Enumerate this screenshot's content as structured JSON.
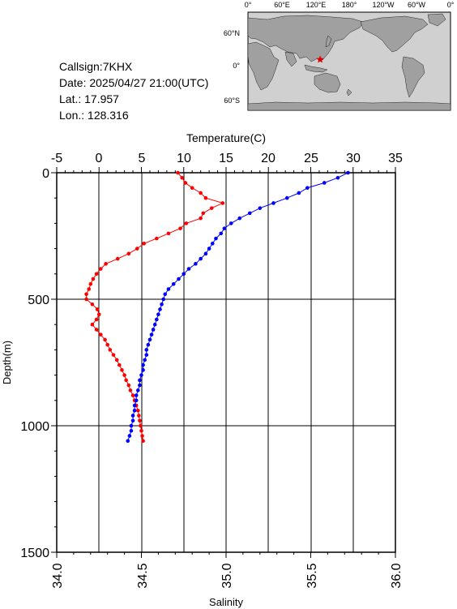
{
  "info": {
    "callsign": "Callsign:7KHX",
    "date": "Date:  2025/04/27 21:00(UTC)",
    "lat": "Lat.:   17.957",
    "lon": "Lon.:  128.316"
  },
  "map": {
    "top_labels": [
      "0°",
      "60°E",
      "120°E",
      "180°",
      "120°W",
      "60°W",
      "0°"
    ],
    "lat_labels": [
      "60°N",
      "0°",
      "60°S"
    ],
    "colors": {
      "ocean": "#d0d0d0",
      "land": "#a0a0a0",
      "marker": "#e00000"
    },
    "marker": {
      "lat": 17.957,
      "lon": 128.316
    }
  },
  "chart_data": {
    "type": "scatter",
    "top_axis_label": "Temperature(C)",
    "bottom_axis_label": "Salinity",
    "ylabel": "Depth(m)",
    "temperature_range": [
      -5,
      35
    ],
    "temperature_ticks": [
      "-5",
      "0",
      "5",
      "10",
      "15",
      "20",
      "25",
      "30",
      "35"
    ],
    "salinity_range": [
      34.0,
      36.0
    ],
    "salinity_ticks": [
      "34.0",
      "34.5",
      "35.0",
      "35.5",
      "36.0"
    ],
    "depth_range": [
      0,
      1500
    ],
    "depth_ticks": [
      "0",
      "500",
      "1000",
      "1500"
    ],
    "colors": {
      "temperature": "#ff0000",
      "salinity": "#0000ff"
    },
    "series": [
      {
        "variable": "temperature",
        "depth": [
          0,
          20,
          40,
          60,
          80,
          100,
          120,
          140,
          160,
          180,
          200,
          220,
          240,
          260,
          280,
          300,
          320,
          340,
          360,
          380,
          400,
          420,
          440,
          460,
          480,
          500,
          520,
          540,
          560,
          580,
          600,
          620,
          640,
          660,
          680,
          700,
          720,
          740,
          760,
          780,
          800,
          820,
          840,
          860,
          880,
          900,
          920,
          940,
          960,
          980,
          1000,
          1020,
          1040,
          1060
        ],
        "values": [
          9.3,
          9.8,
          10.2,
          11.0,
          12.0,
          12.6,
          14.6,
          13.3,
          12.3,
          12.0,
          10.3,
          9.6,
          8.2,
          6.8,
          5.3,
          4.5,
          3.5,
          2.2,
          0.8,
          0.2,
          -0.3,
          -0.7,
          -1.0,
          -1.2,
          -1.5,
          -1.5,
          -0.8,
          -0.2,
          0.0,
          -0.3,
          -0.8,
          -0.3,
          0.2,
          0.7,
          1.0,
          1.3,
          1.7,
          2.1,
          2.4,
          2.7,
          3.0,
          3.2,
          3.5,
          3.7,
          4.0,
          4.2,
          4.4,
          4.6,
          4.7,
          4.8,
          4.9,
          5.0,
          5.1,
          5.2
        ]
      },
      {
        "variable": "salinity",
        "depth": [
          0,
          20,
          40,
          60,
          80,
          100,
          120,
          140,
          160,
          180,
          200,
          220,
          240,
          260,
          280,
          300,
          320,
          340,
          360,
          380,
          400,
          420,
          440,
          460,
          480,
          500,
          520,
          540,
          560,
          580,
          600,
          620,
          640,
          660,
          680,
          700,
          720,
          740,
          760,
          780,
          800,
          820,
          840,
          860,
          880,
          900,
          920,
          940,
          960,
          980,
          1000,
          1020,
          1040,
          1060
        ],
        "values": [
          35.72,
          35.66,
          35.58,
          35.48,
          35.43,
          35.36,
          35.28,
          35.2,
          35.14,
          35.08,
          35.03,
          34.99,
          34.97,
          34.94,
          34.92,
          34.9,
          34.88,
          34.85,
          34.82,
          34.78,
          34.75,
          34.72,
          34.69,
          34.66,
          34.64,
          34.63,
          34.62,
          34.61,
          34.6,
          34.59,
          34.58,
          34.57,
          34.56,
          34.55,
          34.54,
          34.53,
          34.53,
          34.52,
          34.51,
          34.51,
          34.5,
          34.49,
          34.49,
          34.48,
          34.47,
          34.47,
          34.46,
          34.46,
          34.45,
          34.45,
          34.44,
          34.44,
          34.43,
          34.42
        ]
      }
    ]
  }
}
